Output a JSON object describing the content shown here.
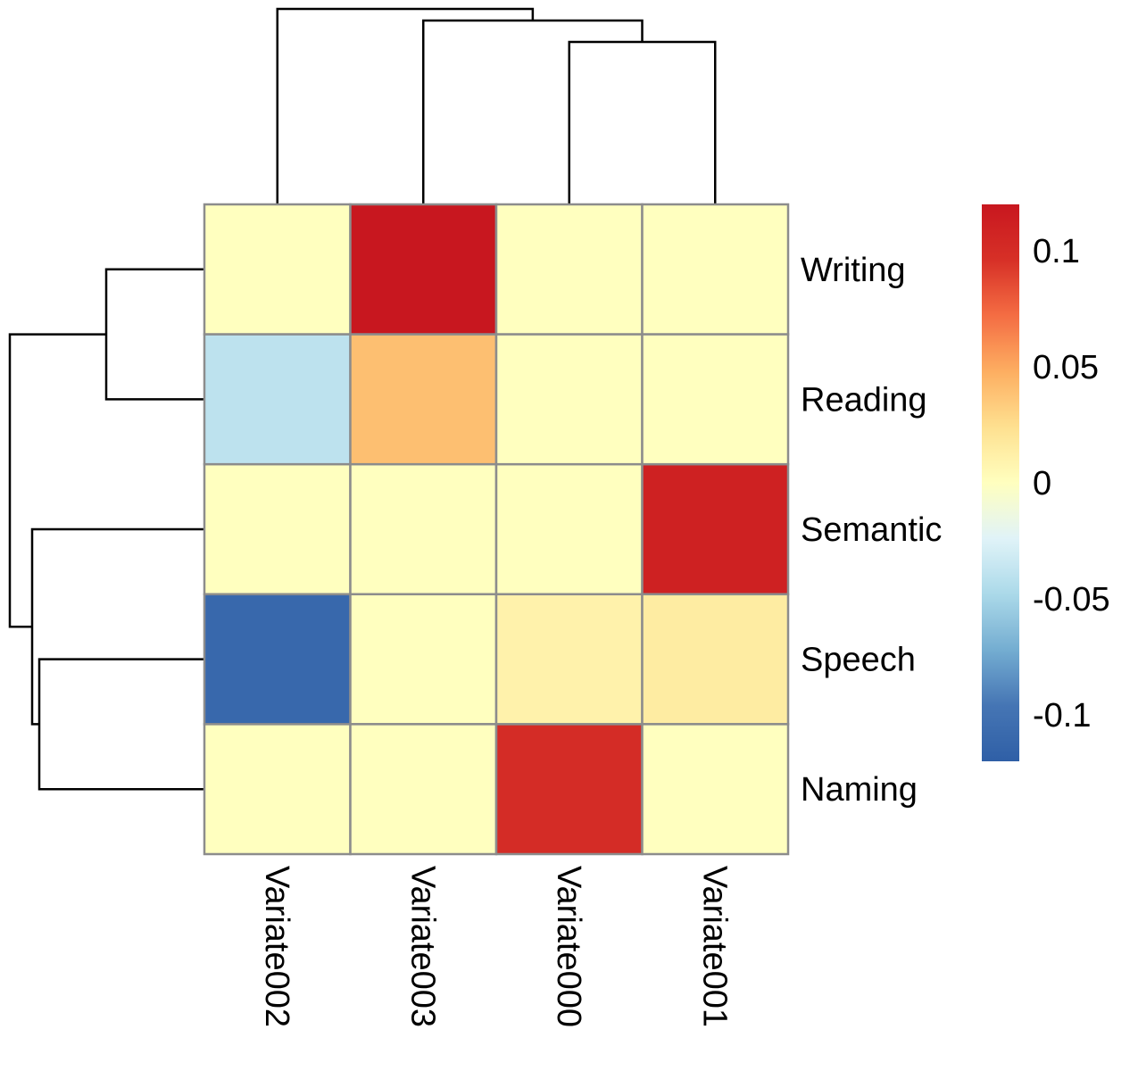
{
  "chart_data": {
    "type": "heatmap",
    "rows": [
      "Writing",
      "Reading",
      "Semantic",
      "Speech",
      "Naming"
    ],
    "columns": [
      "Variate002",
      "Variate003",
      "Variate000",
      "Variate001"
    ],
    "values": [
      [
        0.0,
        0.12,
        0.0,
        0.0
      ],
      [
        -0.04,
        0.04,
        0.0,
        0.0
      ],
      [
        0.0,
        0.0,
        0.0,
        0.11
      ],
      [
        -0.11,
        0.0,
        0.01,
        0.015
      ],
      [
        0.0,
        0.0,
        0.1,
        0.0
      ]
    ],
    "color_scale": {
      "min": -0.12,
      "max": 0.12,
      "colors": [
        "#2f5fa6",
        "#4575b4",
        "#74add1",
        "#abd9e9",
        "#e0f3f8",
        "#ffffbf",
        "#fee090",
        "#fdae61",
        "#f46d43",
        "#d73027",
        "#c8171f"
      ]
    },
    "legend_ticks": [
      {
        "value": 0.1,
        "label": "0.1"
      },
      {
        "value": 0.05,
        "label": "0.05"
      },
      {
        "value": 0.0,
        "label": "0"
      },
      {
        "value": -0.05,
        "label": "-0.05"
      },
      {
        "value": -0.1,
        "label": "-0.1"
      }
    ],
    "column_dendrogram": "((Variate002,(Variate003,(Variate000,Variate001))))",
    "row_dendrogram": "((Writing,Reading),(Semantic,(Speech,Naming)))",
    "cell_border_color": "#8c8c8c",
    "dendrogram_color": "#000000"
  }
}
